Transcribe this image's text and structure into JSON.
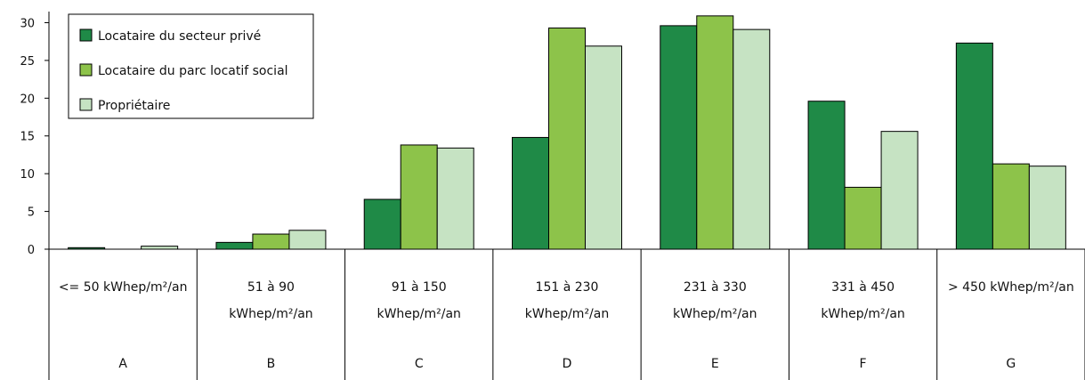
{
  "chart_data": {
    "type": "bar",
    "title": "",
    "xlabel": "",
    "ylabel": "",
    "ylim": [
      0,
      31
    ],
    "yticks": [
      0,
      5,
      10,
      15,
      20,
      25,
      30
    ],
    "grid": false,
    "legend_position": "top-left",
    "categories": [
      {
        "label_lines": [
          "<= 50 kWhep/m²/an"
        ],
        "letter": "A"
      },
      {
        "label_lines": [
          "51 à 90",
          "kWhep/m²/an"
        ],
        "letter": "B"
      },
      {
        "label_lines": [
          "91 à 150",
          "kWhep/m²/an"
        ],
        "letter": "C"
      },
      {
        "label_lines": [
          "151 à 230",
          "kWhep/m²/an"
        ],
        "letter": "D"
      },
      {
        "label_lines": [
          "231 à 330",
          "kWhep/m²/an"
        ],
        "letter": "E"
      },
      {
        "label_lines": [
          "331 à 450",
          "kWhep/m²/an"
        ],
        "letter": "F"
      },
      {
        "label_lines": [
          "> 450 kWhep/m²/an"
        ],
        "letter": "G"
      }
    ],
    "series": [
      {
        "name": "Locataire du secteur privé",
        "color": "#1f8a47",
        "values": [
          0.2,
          0.9,
          6.6,
          14.8,
          29.6,
          19.6,
          27.3
        ]
      },
      {
        "name": "Locataire du parc locatif social",
        "color": "#8dc34a",
        "values": [
          0.0,
          2.0,
          13.8,
          29.3,
          30.9,
          8.2,
          11.3
        ]
      },
      {
        "name": "Propriétaire",
        "color": "#c6e3c3",
        "values": [
          0.4,
          2.5,
          13.4,
          26.9,
          29.1,
          15.6,
          11.0
        ]
      }
    ]
  }
}
